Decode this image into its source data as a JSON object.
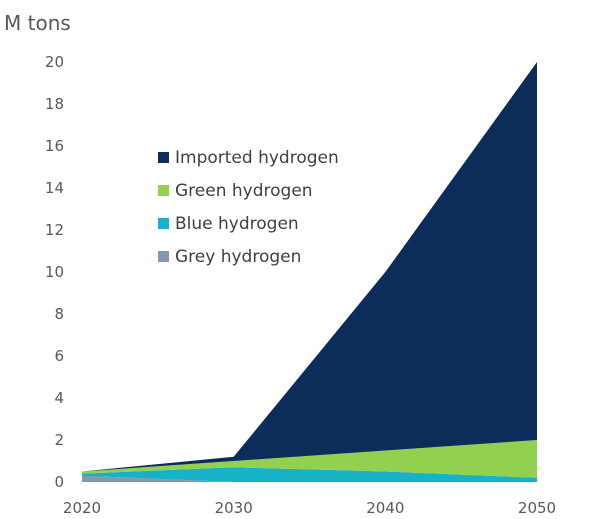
{
  "chart_data": {
    "type": "area",
    "stacked": true,
    "ylabel": "M tons",
    "x": [
      2020,
      2030,
      2040,
      2050
    ],
    "x_ticks": [
      "2020",
      "2030",
      "2040",
      "2050"
    ],
    "y_ticks": [
      "0",
      "2",
      "4",
      "6",
      "8",
      "10",
      "12",
      "14",
      "16",
      "18",
      "20"
    ],
    "ylim": [
      0,
      20
    ],
    "grid": false,
    "legend_position": "upper-left-inside",
    "series": [
      {
        "name": "Grey hydrogen",
        "color": "#8497b0",
        "values": [
          0.3,
          0,
          0,
          0
        ]
      },
      {
        "name": "Blue hydrogen",
        "color": "#17b1c8",
        "values": [
          0.1,
          0.7,
          0.5,
          0.2
        ]
      },
      {
        "name": "Green hydrogen",
        "color": "#92d050",
        "values": [
          0.1,
          0.3,
          1.0,
          1.8
        ]
      },
      {
        "name": "Imported hydrogen",
        "color": "#0c2d5a",
        "values": [
          0,
          0.2,
          8.5,
          18.0
        ]
      }
    ],
    "legend_order": [
      "Imported hydrogen",
      "Green hydrogen",
      "Blue hydrogen",
      "Grey hydrogen"
    ]
  }
}
